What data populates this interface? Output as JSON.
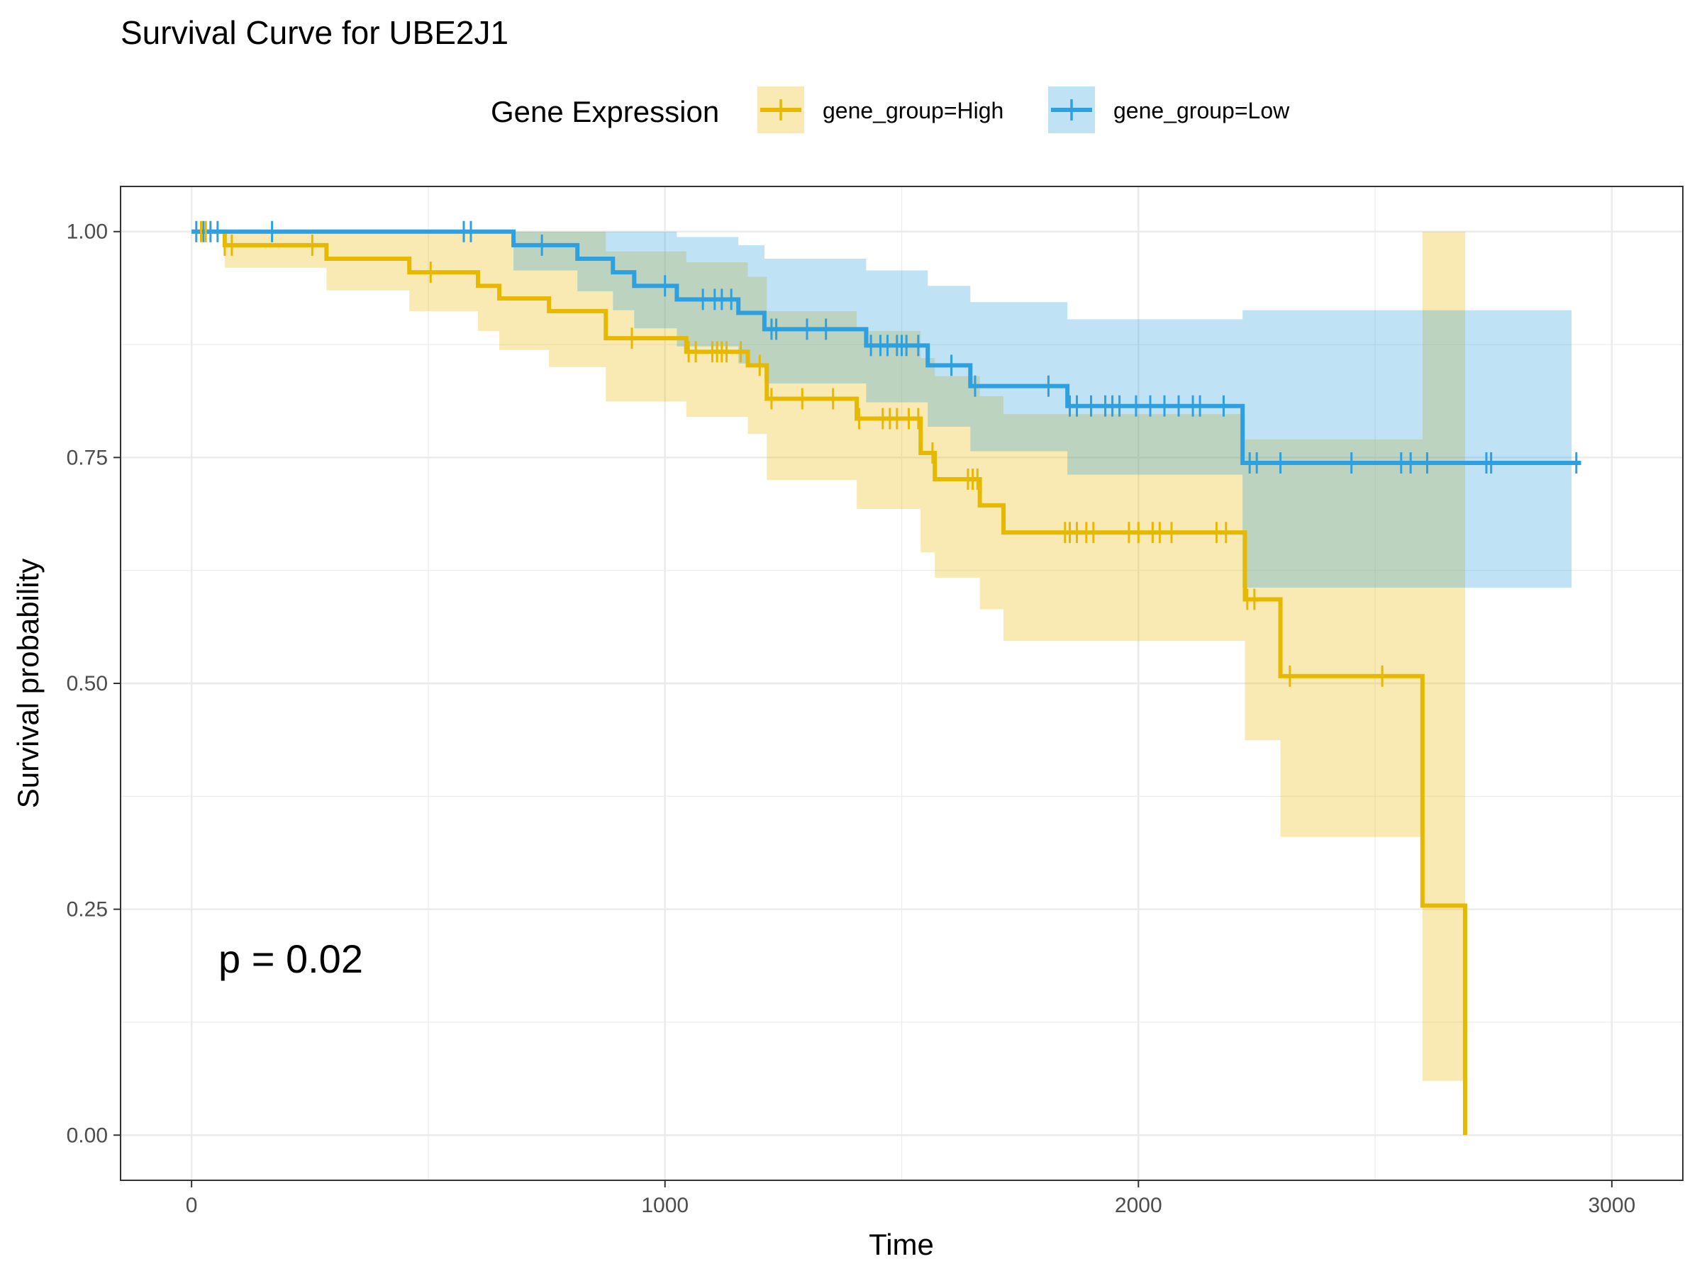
{
  "chart_data": {
    "type": "line",
    "title": "Survival Curve for UBE2J1",
    "xlabel": "Time",
    "ylabel": "Survival probability",
    "xlim": [
      -150,
      3150
    ],
    "ylim": [
      -0.05,
      1.05
    ],
    "xticks": [
      0,
      1000,
      2000,
      3000
    ],
    "yticks": [
      0,
      0.25,
      0.5,
      0.75,
      1.0
    ],
    "ytick_labels": [
      "0.00",
      "0.25",
      "0.50",
      "0.75",
      "1.00"
    ],
    "grid": true,
    "legend": {
      "title": "Gene Expression",
      "position": "top",
      "entries": [
        "gene_group=High",
        "gene_group=Low"
      ]
    },
    "annotation": "p = 0.02",
    "series": [
      {
        "name": "gene_group=High",
        "color": "#E7B800",
        "step_times": [
          0,
          70,
          285,
          460,
          605,
          650,
          755,
          875,
          1045,
          1175,
          1215,
          1405,
          1540,
          1570,
          1665,
          1715,
          2225,
          2300,
          2600,
          2690
        ],
        "surv": [
          1.0,
          0.985,
          0.97,
          0.955,
          0.94,
          0.926,
          0.912,
          0.882,
          0.867,
          0.852,
          0.815,
          0.793,
          0.755,
          0.726,
          0.697,
          0.667,
          0.593,
          0.508,
          0.254,
          0.0
        ],
        "lower": [
          1.0,
          0.96,
          0.935,
          0.912,
          0.89,
          0.869,
          0.85,
          0.812,
          0.795,
          0.776,
          0.725,
          0.693,
          0.645,
          0.617,
          0.582,
          0.547,
          0.437,
          0.33,
          0.06,
          0.0
        ],
        "upper": [
          1.0,
          1.0,
          1.0,
          1.0,
          1.0,
          1.0,
          1.0,
          0.978,
          0.966,
          0.95,
          0.912,
          0.89,
          0.86,
          0.84,
          0.818,
          0.798,
          0.77,
          0.77,
          1.0,
          1.0
        ],
        "band_end": 2690,
        "curve_end": 2690,
        "censor_times": [
          20,
          30,
          70,
          85,
          255,
          505,
          930,
          1050,
          1065,
          1100,
          1110,
          1120,
          1130,
          1160,
          1200,
          1225,
          1290,
          1355,
          1410,
          1460,
          1475,
          1490,
          1515,
          1535,
          1565,
          1640,
          1650,
          1660,
          1845,
          1855,
          1870,
          1890,
          1905,
          1980,
          2000,
          2030,
          2045,
          2070,
          2165,
          2185,
          2230,
          2245,
          2320,
          2515
        ]
      },
      {
        "name": "gene_group=Low",
        "color": "#2E9FDF",
        "step_times": [
          0,
          680,
          815,
          890,
          935,
          1025,
          1155,
          1210,
          1425,
          1555,
          1645,
          1850,
          2220
        ],
        "surv": [
          1.0,
          0.985,
          0.97,
          0.955,
          0.94,
          0.925,
          0.91,
          0.892,
          0.874,
          0.852,
          0.829,
          0.807,
          0.744
        ],
        "lower": [
          1.0,
          0.957,
          0.934,
          0.913,
          0.893,
          0.873,
          0.854,
          0.832,
          0.811,
          0.784,
          0.757,
          0.731,
          0.606
        ],
        "upper": [
          1.0,
          1.0,
          1.0,
          1.0,
          1.0,
          0.994,
          0.985,
          0.97,
          0.957,
          0.94,
          0.922,
          0.903,
          0.913
        ],
        "band_end": 2915,
        "curve_end": 2935,
        "censor_times": [
          10,
          25,
          40,
          55,
          170,
          575,
          590,
          740,
          1000,
          1080,
          1105,
          1120,
          1140,
          1225,
          1235,
          1300,
          1340,
          1435,
          1455,
          1470,
          1490,
          1500,
          1510,
          1535,
          1605,
          1655,
          1810,
          1855,
          1870,
          1900,
          1930,
          1945,
          1960,
          1995,
          2025,
          2055,
          2085,
          2115,
          2130,
          2180,
          2235,
          2250,
          2300,
          2450,
          2555,
          2575,
          2610,
          2735,
          2745,
          2925
        ]
      }
    ]
  }
}
